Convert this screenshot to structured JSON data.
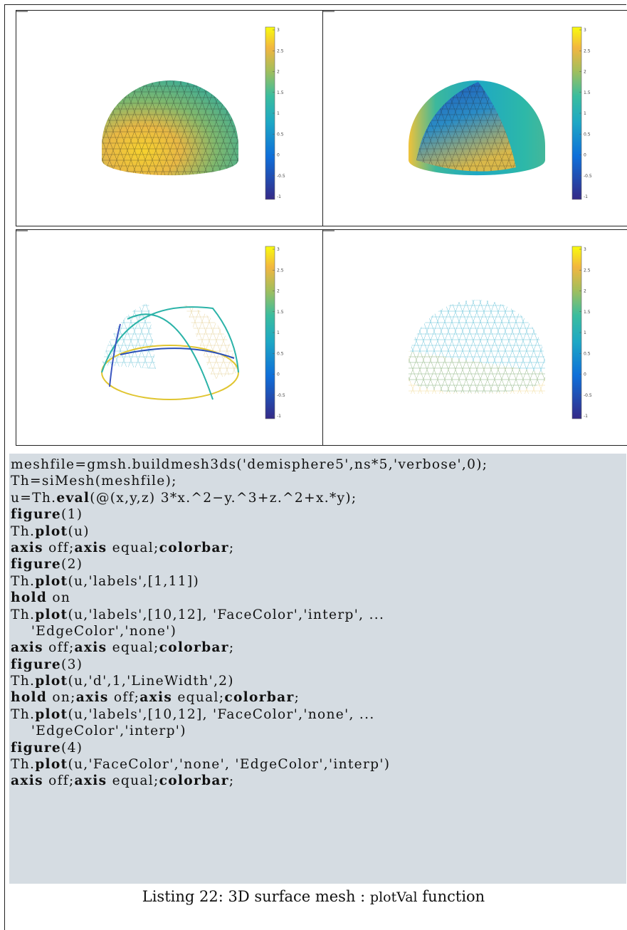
{
  "colorbar_ticks": [
    "3",
    "2.5",
    "2",
    "1.5",
    "1",
    "0.5",
    "0",
    "-0.5",
    "-1"
  ],
  "code_lines": [
    [
      {
        "t": "meshfile=gmsh.buildmesh3ds('demisphere5',ns*5,'verbose',0);",
        "b": false
      }
    ],
    [
      {
        "t": "Th=siMesh(meshfile);",
        "b": false
      }
    ],
    [
      {
        "t": "u=Th.",
        "b": false
      },
      {
        "t": "eval",
        "b": true
      },
      {
        "t": "(@(x,y,z) 3*x.^2−y.^3+z.^2+x.*y);",
        "b": false
      }
    ],
    [
      {
        "t": "figure",
        "b": true
      },
      {
        "t": "(1)",
        "b": false
      }
    ],
    [
      {
        "t": "Th.",
        "b": false
      },
      {
        "t": "plot",
        "b": true
      },
      {
        "t": "(u)",
        "b": false
      }
    ],
    [
      {
        "t": "axis",
        "b": true
      },
      {
        "t": " off;",
        "b": false
      },
      {
        "t": "axis",
        "b": true
      },
      {
        "t": " equal;",
        "b": false
      },
      {
        "t": "colorbar",
        "b": true
      },
      {
        "t": ";",
        "b": false
      }
    ],
    [
      {
        "t": "figure",
        "b": true
      },
      {
        "t": "(2)",
        "b": false
      }
    ],
    [
      {
        "t": "Th.",
        "b": false
      },
      {
        "t": "plot",
        "b": true
      },
      {
        "t": "(u,'labels',[1,11])",
        "b": false
      }
    ],
    [
      {
        "t": "hold",
        "b": true
      },
      {
        "t": " on",
        "b": false
      }
    ],
    [
      {
        "t": "Th.",
        "b": false
      },
      {
        "t": "plot",
        "b": true
      },
      {
        "t": "(u,'labels',[10,12], 'FaceColor','interp', ...",
        "b": false
      }
    ],
    [
      {
        "t": "    'EdgeColor','none')",
        "b": false
      }
    ],
    [
      {
        "t": "axis",
        "b": true
      },
      {
        "t": " off;",
        "b": false
      },
      {
        "t": "axis",
        "b": true
      },
      {
        "t": " equal;",
        "b": false
      },
      {
        "t": "colorbar",
        "b": true
      },
      {
        "t": ";",
        "b": false
      }
    ],
    [
      {
        "t": "figure",
        "b": true
      },
      {
        "t": "(3)",
        "b": false
      }
    ],
    [
      {
        "t": "Th.",
        "b": false
      },
      {
        "t": "plot",
        "b": true
      },
      {
        "t": "(u,'d',1,'LineWidth',2)",
        "b": false
      }
    ],
    [
      {
        "t": "hold",
        "b": true
      },
      {
        "t": " on;",
        "b": false
      },
      {
        "t": "axis",
        "b": true
      },
      {
        "t": " off;",
        "b": false
      },
      {
        "t": "axis",
        "b": true
      },
      {
        "t": " equal;",
        "b": false
      },
      {
        "t": "colorbar",
        "b": true
      },
      {
        "t": ";",
        "b": false
      }
    ],
    [
      {
        "t": "Th.",
        "b": false
      },
      {
        "t": "plot",
        "b": true
      },
      {
        "t": "(u,'labels',[10,12], 'FaceColor','none', ...",
        "b": false
      }
    ],
    [
      {
        "t": "    'EdgeColor','interp')",
        "b": false
      }
    ],
    [
      {
        "t": "figure",
        "b": true
      },
      {
        "t": "(4)",
        "b": false
      }
    ],
    [
      {
        "t": "Th.",
        "b": false
      },
      {
        "t": "plot",
        "b": true
      },
      {
        "t": "(u,'FaceColor','none', 'EdgeColor','interp')",
        "b": false
      }
    ],
    [
      {
        "t": "axis",
        "b": true
      },
      {
        "t": " off;",
        "b": false
      },
      {
        "t": "axis",
        "b": true
      },
      {
        "t": " equal;",
        "b": false
      },
      {
        "t": "colorbar",
        "b": true
      },
      {
        "t": ";",
        "b": false
      }
    ]
  ],
  "caption": {
    "prefix": "Listing 22: 3D surface mesh : ",
    "small": "plotVal",
    "suffix": " function"
  },
  "colors": {
    "code_bg": "#d5dce2",
    "parula_low": "#352a87",
    "parula_mid": "#21b1ae",
    "parula_high": "#f9fb0e"
  }
}
